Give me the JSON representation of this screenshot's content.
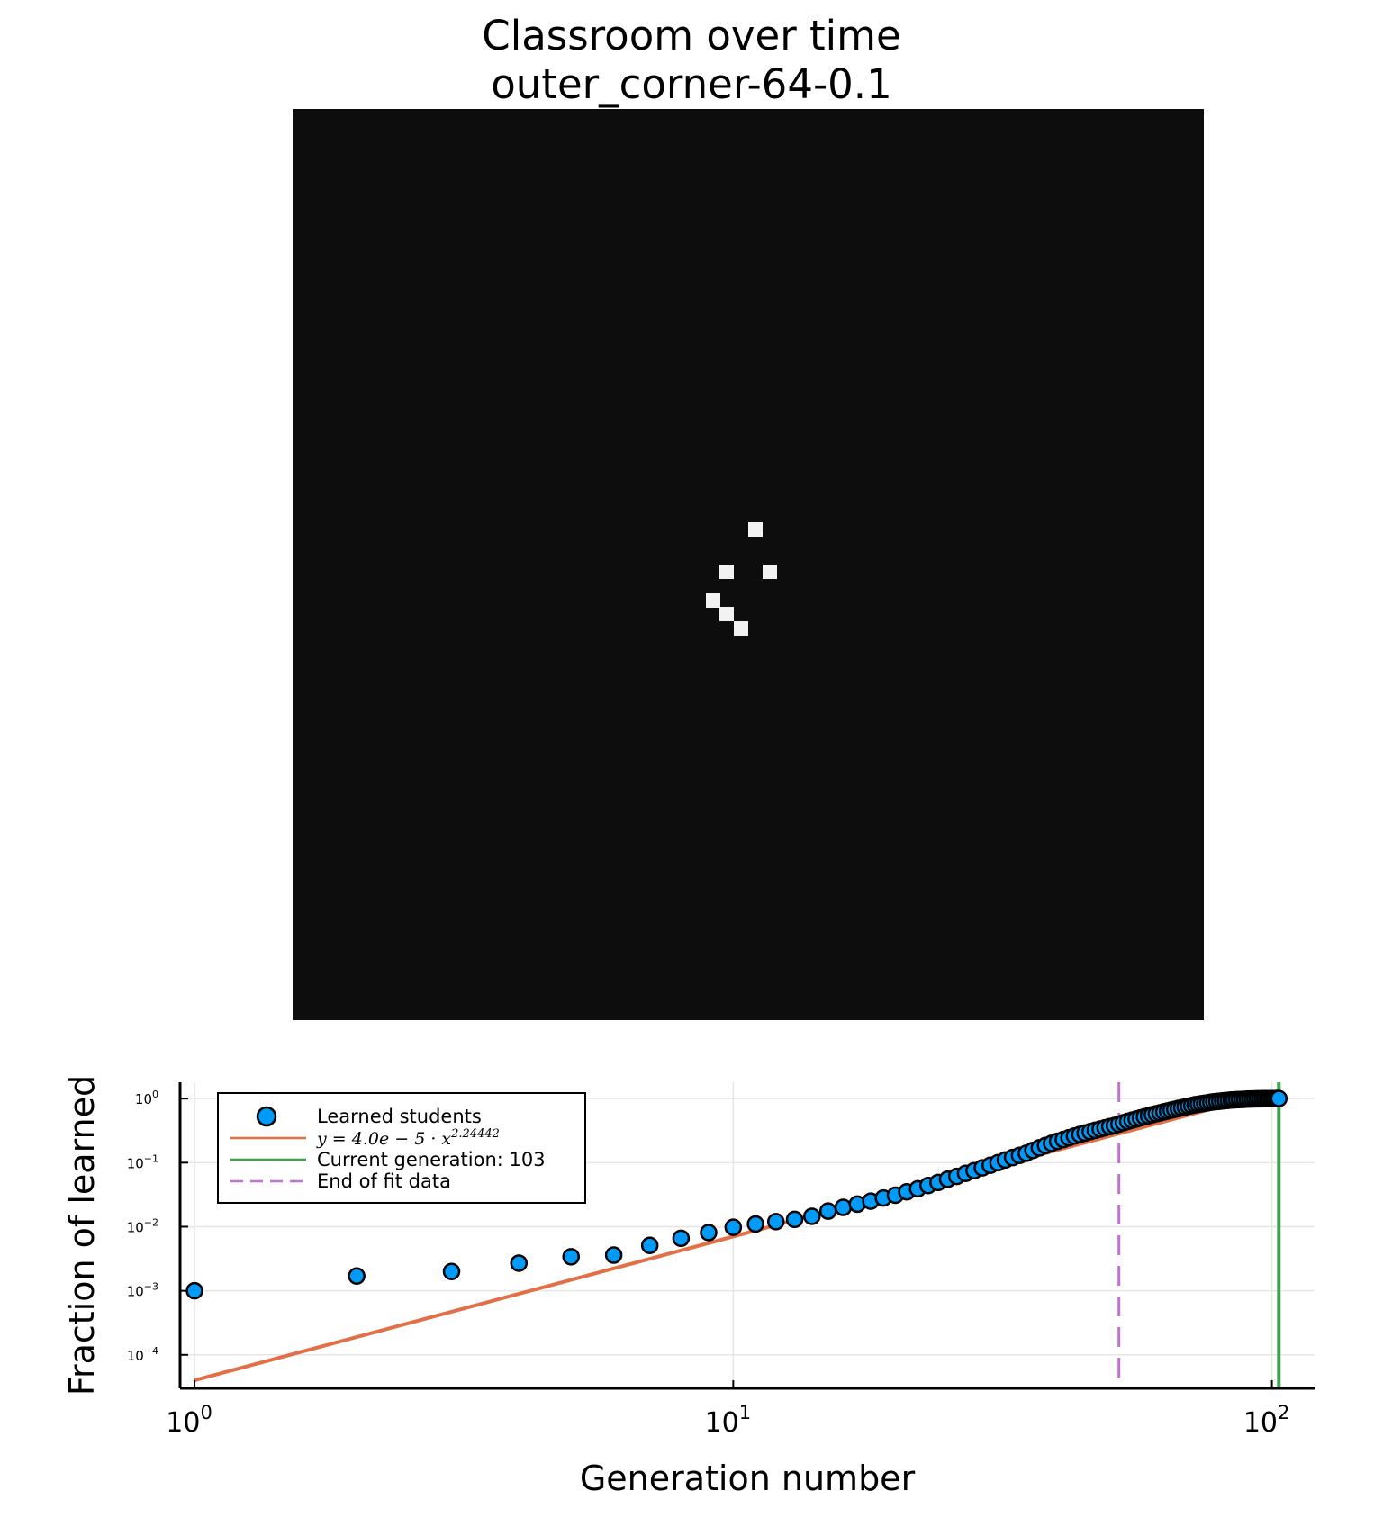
{
  "titles": {
    "line1": "Classroom over time",
    "line2": "outer_corner-64-0.1"
  },
  "heatmap": {
    "grid_size": 64,
    "background_color": "#0d0d0d",
    "learned_color": "#f2f2f2",
    "learned_cells": [
      {
        "row": 29,
        "col": 32
      },
      {
        "row": 32,
        "col": 30
      },
      {
        "row": 32,
        "col": 33
      },
      {
        "row": 34,
        "col": 29
      },
      {
        "row": 35,
        "col": 30
      },
      {
        "row": 36,
        "col": 31
      }
    ]
  },
  "chart_data": {
    "type": "scatter",
    "x_scale": "log",
    "y_scale": "log",
    "xlabel": "Generation number",
    "ylabel": "Fraction of learned",
    "xlim": [
      0.94,
      120
    ],
    "ylim": [
      3e-05,
      1.8
    ],
    "grid": true,
    "x_ticks": [
      {
        "value": 1,
        "base": "10",
        "exp": "0"
      },
      {
        "value": 10,
        "base": "10",
        "exp": "1"
      },
      {
        "value": 100,
        "base": "10",
        "exp": "2"
      }
    ],
    "y_ticks": [
      {
        "value": 1,
        "base": "10",
        "exp": "0"
      },
      {
        "value": 0.1,
        "base": "10",
        "exp": "−1"
      },
      {
        "value": 0.01,
        "base": "10",
        "exp": "−2"
      },
      {
        "value": 0.001,
        "base": "10",
        "exp": "−3"
      },
      {
        "value": 0.0001,
        "base": "10",
        "exp": "−4"
      }
    ],
    "legend_position": "top-left",
    "series": [
      {
        "name": "Learned students",
        "kind": "scatter",
        "color": "#009af9",
        "x": [
          1,
          2,
          3,
          4,
          5,
          6,
          7,
          8,
          9,
          10,
          11,
          12,
          13,
          14,
          15,
          16,
          17,
          18,
          19,
          20,
          21,
          22,
          23,
          24,
          25,
          26,
          27,
          28,
          29,
          30,
          31,
          32,
          33,
          34,
          35,
          36,
          37,
          38,
          39,
          40,
          41,
          42,
          43,
          44,
          45,
          46,
          47,
          48,
          49,
          50,
          51,
          52,
          53,
          54,
          55,
          56,
          57,
          58,
          59,
          60,
          61,
          62,
          63,
          64,
          65,
          66,
          67,
          68,
          69,
          70,
          71,
          72,
          73,
          74,
          75,
          76,
          77,
          78,
          79,
          80,
          81,
          82,
          83,
          84,
          85,
          86,
          87,
          88,
          89,
          90,
          91,
          92,
          93,
          94,
          95,
          96,
          97,
          98,
          99,
          100,
          101,
          102,
          103
        ],
        "y": [
          0.001,
          0.0017,
          0.002,
          0.0027,
          0.0034,
          0.0036,
          0.0051,
          0.0066,
          0.0081,
          0.0098,
          0.011,
          0.012,
          0.013,
          0.0145,
          0.0175,
          0.02,
          0.0225,
          0.025,
          0.028,
          0.031,
          0.035,
          0.039,
          0.044,
          0.049,
          0.055,
          0.061,
          0.068,
          0.075,
          0.083,
          0.091,
          0.1,
          0.11,
          0.12,
          0.13,
          0.14,
          0.155,
          0.17,
          0.185,
          0.2,
          0.215,
          0.23,
          0.245,
          0.26,
          0.275,
          0.29,
          0.305,
          0.32,
          0.335,
          0.35,
          0.365,
          0.38,
          0.4,
          0.42,
          0.44,
          0.46,
          0.48,
          0.5,
          0.52,
          0.54,
          0.56,
          0.58,
          0.6,
          0.62,
          0.64,
          0.66,
          0.68,
          0.7,
          0.72,
          0.74,
          0.76,
          0.78,
          0.8,
          0.815,
          0.83,
          0.845,
          0.86,
          0.875,
          0.89,
          0.9,
          0.91,
          0.92,
          0.93,
          0.94,
          0.95,
          0.955,
          0.96,
          0.965,
          0.97,
          0.975,
          0.98,
          0.984,
          0.987,
          0.99,
          0.992,
          0.994,
          0.995,
          0.996,
          0.997,
          0.998,
          0.999,
          0.999,
          1.0,
          1.0
        ]
      },
      {
        "name": "y = 4.0e − 5 · x^2.24442",
        "kind": "fit-line",
        "color": "#e26f46",
        "coefficient": 4e-05,
        "exponent": 2.24442,
        "x_range": [
          1,
          103
        ]
      },
      {
        "name": "Current generation: 103",
        "kind": "vline",
        "color": "#3da44d",
        "x": 103
      },
      {
        "name": "End of fit data",
        "kind": "vline-dashed",
        "color": "#c271d2",
        "x": 52
      }
    ],
    "legend": {
      "scatter_label": "Learned students",
      "fit_label_main": "y = 4.0e − 5 · x",
      "fit_label_exp": "2.24442",
      "current_label": "Current generation: 103",
      "end_label": "End of fit data"
    }
  }
}
